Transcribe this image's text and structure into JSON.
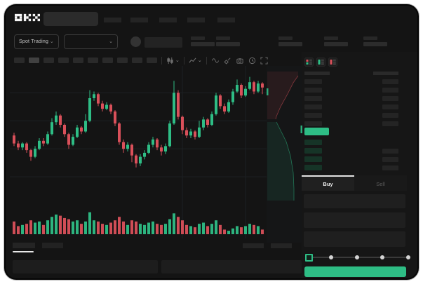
{
  "brand": {
    "name": "OKX"
  },
  "colors": {
    "accent_green": "#2ebd85",
    "accent_red": "#d9505a",
    "bid_tint": "#163427",
    "grid": "#1d2023"
  },
  "icons": {
    "chevron_down": "⌄"
  },
  "subheader": {
    "market_dropdown_label": "Spot Trading"
  },
  "order_book": {
    "ask_row_count": 6,
    "bid_row_count": 4
  },
  "trade_panel": {
    "buy_tab_label": "Buy",
    "sell_tab_label": "Sell",
    "slider_stops": 5
  },
  "chart_data": {
    "type": "candlestick",
    "title": "",
    "xlabel": "",
    "ylabel": "",
    "price_scale": [
      0,
      100
    ],
    "note": "values estimated from pixels on a 0-100 relative price scale; no axis labels are visible in the UI",
    "h_gridlines_price": [
      84,
      63,
      42,
      21
    ],
    "v_gridlines_index": [
      40,
      55
    ],
    "candles": [
      [
        52,
        46,
        54,
        44
      ],
      [
        46,
        43,
        48,
        41
      ],
      [
        43,
        46,
        47,
        41
      ],
      [
        46,
        41,
        47,
        39
      ],
      [
        41,
        36,
        42,
        33
      ],
      [
        36,
        42,
        44,
        35
      ],
      [
        42,
        48,
        50,
        41
      ],
      [
        48,
        46,
        50,
        44
      ],
      [
        46,
        53,
        55,
        45
      ],
      [
        53,
        62,
        65,
        52
      ],
      [
        62,
        67,
        70,
        60
      ],
      [
        67,
        60,
        68,
        58
      ],
      [
        60,
        53,
        61,
        51
      ],
      [
        53,
        45,
        54,
        42
      ],
      [
        45,
        51,
        53,
        44
      ],
      [
        51,
        58,
        60,
        50
      ],
      [
        58,
        55,
        59,
        53
      ],
      [
        55,
        63,
        68,
        54
      ],
      [
        63,
        80,
        86,
        62
      ],
      [
        80,
        83,
        85,
        78
      ],
      [
        83,
        76,
        84,
        74
      ],
      [
        76,
        72,
        78,
        70
      ],
      [
        72,
        75,
        77,
        71
      ],
      [
        75,
        70,
        76,
        68
      ],
      [
        70,
        61,
        71,
        59
      ],
      [
        61,
        47,
        62,
        45
      ],
      [
        47,
        42,
        49,
        39
      ],
      [
        42,
        45,
        47,
        40
      ],
      [
        45,
        37,
        46,
        32
      ],
      [
        37,
        31,
        38,
        28
      ],
      [
        31,
        36,
        38,
        29
      ],
      [
        36,
        39,
        41,
        34
      ],
      [
        39,
        45,
        47,
        38
      ],
      [
        45,
        49,
        51,
        43
      ],
      [
        49,
        43,
        50,
        41
      ],
      [
        43,
        40,
        45,
        37
      ],
      [
        40,
        44,
        46,
        38
      ],
      [
        44,
        61,
        63,
        43
      ],
      [
        61,
        84,
        93,
        60
      ],
      [
        84,
        66,
        86,
        64
      ],
      [
        66,
        56,
        67,
        53
      ],
      [
        56,
        52,
        58,
        50
      ],
      [
        52,
        55,
        57,
        50
      ],
      [
        55,
        51,
        56,
        49
      ],
      [
        51,
        58,
        63,
        50
      ],
      [
        58,
        64,
        66,
        56
      ],
      [
        64,
        60,
        65,
        58
      ],
      [
        60,
        68,
        70,
        59
      ],
      [
        68,
        82,
        84,
        67
      ],
      [
        82,
        74,
        83,
        72
      ],
      [
        74,
        70,
        76,
        68
      ],
      [
        70,
        77,
        79,
        69
      ],
      [
        77,
        85,
        87,
        75
      ],
      [
        85,
        90,
        94,
        84
      ],
      [
        90,
        82,
        91,
        80
      ],
      [
        82,
        87,
        89,
        81
      ],
      [
        87,
        92,
        96,
        86
      ],
      [
        92,
        85,
        93,
        83
      ],
      [
        85,
        91,
        93,
        84
      ],
      [
        91,
        88,
        92,
        83
      ]
    ],
    "volumes": [
      55,
      35,
      40,
      45,
      60,
      50,
      55,
      40,
      60,
      75,
      85,
      80,
      70,
      65,
      55,
      60,
      45,
      55,
      95,
      60,
      55,
      45,
      40,
      50,
      60,
      75,
      55,
      40,
      60,
      55,
      45,
      40,
      50,
      55,
      45,
      40,
      45,
      65,
      90,
      75,
      60,
      40,
      35,
      30,
      45,
      50,
      35,
      45,
      60,
      40,
      20,
      15,
      25,
      35,
      30,
      35,
      45,
      40,
      35,
      20
    ]
  }
}
